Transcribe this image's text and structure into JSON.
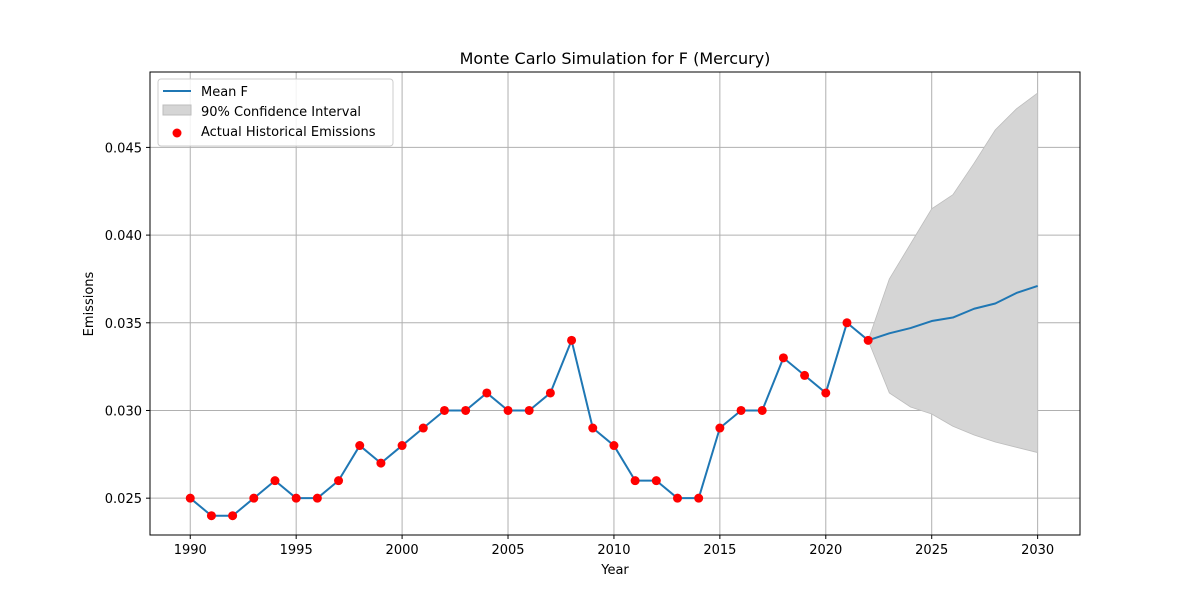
{
  "chart_data": {
    "type": "line",
    "title": "Monte Carlo Simulation for F (Mercury)",
    "xlabel": "Year",
    "ylabel": "Emissions",
    "xlim": [
      1988.1,
      2032.0
    ],
    "ylim": [
      0.0229,
      0.0493
    ],
    "x_ticks": [
      1990,
      1995,
      2000,
      2005,
      2010,
      2015,
      2020,
      2025,
      2030
    ],
    "x_tick_labels": [
      "1990",
      "1995",
      "2000",
      "2005",
      "2010",
      "2015",
      "2020",
      "2025",
      "2030"
    ],
    "y_ticks": [
      0.025,
      0.03,
      0.035,
      0.04,
      0.045
    ],
    "y_tick_labels": [
      "0.025",
      "0.030",
      "0.035",
      "0.040",
      "0.045"
    ],
    "grid": true,
    "legend_position": "top-left",
    "legend": {
      "mean": "Mean F",
      "ci": "90% Confidence Interval",
      "actual": "Actual Historical Emissions"
    },
    "colors": {
      "mean_line": "#1f77b4",
      "ci_fill": "#d5d5d5",
      "ci_edge": "#bdbdbd",
      "actual_points": "#ff0000",
      "grid": "#b0b0b0"
    },
    "series": [
      {
        "name": "Mean F",
        "x": [
          1990,
          1991,
          1992,
          1993,
          1994,
          1995,
          1996,
          1997,
          1998,
          1999,
          2000,
          2001,
          2002,
          2003,
          2004,
          2005,
          2006,
          2007,
          2008,
          2009,
          2010,
          2011,
          2012,
          2013,
          2014,
          2015,
          2016,
          2017,
          2018,
          2019,
          2020,
          2021,
          2022,
          2023,
          2024,
          2025,
          2026,
          2027,
          2028,
          2029,
          2030
        ],
        "y": [
          0.025,
          0.024,
          0.024,
          0.025,
          0.026,
          0.025,
          0.025,
          0.026,
          0.028,
          0.027,
          0.028,
          0.029,
          0.03,
          0.03,
          0.031,
          0.03,
          0.03,
          0.031,
          0.034,
          0.029,
          0.028,
          0.026,
          0.026,
          0.025,
          0.025,
          0.029,
          0.03,
          0.03,
          0.033,
          0.032,
          0.031,
          0.035,
          0.034,
          0.0344,
          0.0347,
          0.0351,
          0.0353,
          0.0358,
          0.0361,
          0.0367,
          0.0371
        ]
      },
      {
        "name": "90% Confidence Interval",
        "x": [
          2022,
          2023,
          2024,
          2025,
          2026,
          2027,
          2028,
          2029,
          2030
        ],
        "lower": [
          0.034,
          0.031,
          0.0302,
          0.0298,
          0.0291,
          0.0286,
          0.0282,
          0.0279,
          0.0276
        ],
        "upper": [
          0.034,
          0.0375,
          0.0395,
          0.0415,
          0.0423,
          0.0441,
          0.046,
          0.0472,
          0.0481
        ]
      },
      {
        "name": "Actual Historical Emissions",
        "x": [
          1990,
          1991,
          1992,
          1993,
          1994,
          1995,
          1996,
          1997,
          1998,
          1999,
          2000,
          2001,
          2002,
          2003,
          2004,
          2005,
          2006,
          2007,
          2008,
          2009,
          2010,
          2011,
          2012,
          2013,
          2014,
          2015,
          2016,
          2017,
          2018,
          2019,
          2020,
          2021,
          2022
        ],
        "y": [
          0.025,
          0.024,
          0.024,
          0.025,
          0.026,
          0.025,
          0.025,
          0.026,
          0.028,
          0.027,
          0.028,
          0.029,
          0.03,
          0.03,
          0.031,
          0.03,
          0.03,
          0.031,
          0.034,
          0.029,
          0.028,
          0.026,
          0.026,
          0.025,
          0.025,
          0.029,
          0.03,
          0.03,
          0.033,
          0.032,
          0.031,
          0.035,
          0.034
        ]
      }
    ]
  }
}
